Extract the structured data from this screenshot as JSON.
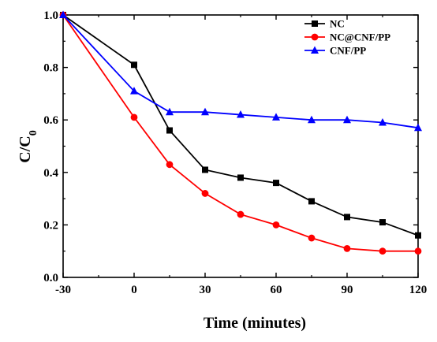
{
  "chart_data": {
    "type": "line",
    "title": "",
    "xlabel": "Time (minutes)",
    "ylabel_main": "C/C",
    "ylabel_sub": "0",
    "xlim": [
      -30,
      120
    ],
    "ylim": [
      0.0,
      1.0
    ],
    "x_ticks": [
      -30,
      0,
      30,
      60,
      90,
      120
    ],
    "x_tick_labels": [
      "-30",
      "0",
      "30",
      "60",
      "90",
      "120"
    ],
    "y_ticks": [
      0.0,
      0.2,
      0.4,
      0.6,
      0.8,
      1.0
    ],
    "y_tick_labels": [
      "0.0",
      "0.2",
      "0.4",
      "0.6",
      "0.8",
      "1.0"
    ],
    "grid": false,
    "legend_position": "top-right",
    "series": [
      {
        "name": "NC",
        "color": "#000000",
        "marker": "square",
        "x": [
          -30,
          0,
          15,
          30,
          45,
          60,
          75,
          90,
          105,
          120
        ],
        "values": [
          1.0,
          0.81,
          0.56,
          0.41,
          0.38,
          0.36,
          0.29,
          0.23,
          0.21,
          0.16
        ]
      },
      {
        "name": "NC@CNF/PP",
        "color": "#ff0000",
        "marker": "circle",
        "x": [
          -30,
          0,
          15,
          30,
          45,
          60,
          75,
          90,
          105,
          120
        ],
        "values": [
          1.0,
          0.61,
          0.43,
          0.32,
          0.24,
          0.2,
          0.15,
          0.11,
          0.1,
          0.1
        ]
      },
      {
        "name": "CNF/PP",
        "color": "#0000ff",
        "marker": "triangle",
        "x": [
          -30,
          0,
          15,
          30,
          45,
          60,
          75,
          90,
          105,
          120
        ],
        "values": [
          1.0,
          0.71,
          0.63,
          0.63,
          0.62,
          0.61,
          0.6,
          0.6,
          0.59,
          0.57
        ]
      }
    ]
  }
}
